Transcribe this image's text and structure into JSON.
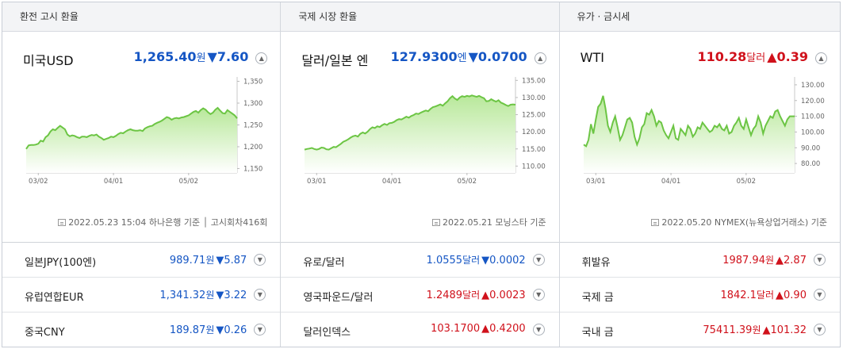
{
  "panels": [
    {
      "header": "환전 고시 환율",
      "main": {
        "name": "미국USD",
        "value": "1,265.40",
        "unit": "원",
        "arrow": "▼",
        "change": "7.60",
        "dir": "down",
        "source": "2022.05.23 15:04 하나은행 기준 │ 고시회차416회"
      },
      "chart_data": {
        "type": "area",
        "title": "",
        "xlabel": "",
        "ylabel": "",
        "ylim": [
          1140,
          1360
        ],
        "yticks": [
          "1,350",
          "1,300",
          "1,250",
          "1,200",
          "1,150"
        ],
        "ytick_values": [
          1350,
          1300,
          1250,
          1200,
          1150
        ],
        "xticks": [
          "03/02",
          "04/01",
          "05/02"
        ],
        "xtick_positions": [
          5,
          36,
          67
        ],
        "n_points": 88,
        "values": [
          1195,
          1203,
          1204,
          1204,
          1205,
          1207,
          1214,
          1212,
          1222,
          1226,
          1235,
          1240,
          1238,
          1243,
          1248,
          1244,
          1240,
          1228,
          1224,
          1226,
          1225,
          1222,
          1220,
          1223,
          1223,
          1222,
          1225,
          1227,
          1226,
          1228,
          1223,
          1220,
          1216,
          1218,
          1220,
          1223,
          1222,
          1225,
          1229,
          1232,
          1231,
          1235,
          1238,
          1240,
          1238,
          1237,
          1237,
          1238,
          1236,
          1242,
          1245,
          1247,
          1248,
          1252,
          1255,
          1257,
          1260,
          1264,
          1268,
          1266,
          1262,
          1265,
          1266,
          1265,
          1267,
          1268,
          1270,
          1272,
          1276,
          1280,
          1282,
          1278,
          1284,
          1288,
          1285,
          1279,
          1275,
          1278,
          1285,
          1289,
          1283,
          1277,
          1276,
          1284,
          1280,
          1276,
          1272,
          1265
        ]
      },
      "rows": [
        {
          "name": "일본JPY(100엔)",
          "value": "989.71",
          "unit": "원",
          "arrow": "▼",
          "change": "5.87",
          "dir": "down"
        },
        {
          "name": "유럽연합EUR",
          "value": "1,341.32",
          "unit": "원",
          "arrow": "▼",
          "change": "3.22",
          "dir": "down"
        },
        {
          "name": "중국CNY",
          "value": "189.87",
          "unit": "원",
          "arrow": "▼",
          "change": "0.26",
          "dir": "down"
        }
      ]
    },
    {
      "header": "국제 시장 환율",
      "main": {
        "name": "달러/일본 엔",
        "value": "127.9300",
        "unit": "엔",
        "arrow": "▼",
        "change": "0.0700",
        "dir": "down",
        "source": "2022.05.21 모닝스타 기준"
      },
      "chart_data": {
        "type": "area",
        "title": "",
        "xlabel": "",
        "ylabel": "",
        "ylim": [
          108,
          136
        ],
        "yticks": [
          "135.00",
          "130.00",
          "125.00",
          "120.00",
          "115.00",
          "110.00"
        ],
        "ytick_values": [
          135,
          130,
          125,
          120,
          115,
          110
        ],
        "xticks": [
          "03/01",
          "04/01",
          "05/02"
        ],
        "xtick_positions": [
          5,
          36,
          67
        ],
        "n_points": 88,
        "values": [
          114.8,
          115.0,
          115.1,
          115.3,
          115.0,
          114.8,
          115.0,
          115.4,
          115.3,
          114.9,
          114.8,
          115.2,
          115.6,
          115.5,
          116.0,
          116.5,
          117.1,
          117.4,
          117.8,
          118.3,
          118.7,
          118.9,
          118.6,
          119.4,
          119.8,
          119.5,
          120.0,
          120.8,
          121.3,
          121.1,
          121.6,
          121.4,
          121.9,
          122.3,
          122.0,
          122.5,
          122.6,
          122.9,
          123.4,
          123.7,
          123.6,
          124.0,
          124.4,
          124.1,
          124.6,
          124.9,
          125.3,
          125.2,
          125.6,
          125.9,
          126.2,
          126.0,
          126.7,
          127.2,
          127.4,
          127.7,
          128.0,
          127.6,
          128.3,
          128.9,
          129.8,
          130.4,
          129.7,
          129.3,
          130.0,
          130.4,
          130.2,
          130.5,
          130.3,
          130.6,
          130.4,
          130.2,
          130.5,
          130.1,
          129.8,
          128.9,
          129.0,
          129.5,
          129.1,
          128.8,
          129.2,
          128.5,
          128.2,
          127.8,
          127.5,
          127.9,
          128.0,
          127.9
        ]
      },
      "rows": [
        {
          "name": "유로/달러",
          "value": "1.0555",
          "unit": "달러",
          "arrow": "▼",
          "change": "0.0002",
          "dir": "down"
        },
        {
          "name": "영국파운드/달러",
          "value": "1.2489",
          "unit": "달러",
          "arrow": "▲",
          "change": "0.0023",
          "dir": "up"
        },
        {
          "name": "달러인덱스",
          "value": "103.1700",
          "unit": "",
          "arrow": "▲",
          "change": "0.4200",
          "dir": "up"
        }
      ]
    },
    {
      "header": "유가 · 금시세",
      "main": {
        "name": "WTI",
        "value": "110.28",
        "unit": "달러",
        "arrow": "▲",
        "change": "0.39",
        "dir": "up",
        "source": "2022.05.20 NYMEX(뉴욕상업거래소) 기준"
      },
      "chart_data": {
        "type": "area",
        "title": "",
        "xlabel": "",
        "ylabel": "",
        "ylim": [
          74,
          135
        ],
        "yticks": [
          "130.00",
          "120.00",
          "110.00",
          "100.00",
          "90.00",
          "80.00"
        ],
        "ytick_values": [
          130,
          120,
          110,
          100,
          90,
          80
        ],
        "xticks": [
          "03/01",
          "04/01",
          "05/02"
        ],
        "xtick_positions": [
          5,
          36,
          67
        ],
        "n_points": 88,
        "values": [
          92,
          91,
          95,
          105,
          99,
          108,
          116,
          118,
          123,
          115,
          104,
          100,
          106,
          110,
          103,
          95,
          98,
          103,
          108,
          109,
          106,
          97,
          92,
          96,
          103,
          105,
          112,
          111,
          114,
          110,
          104,
          107,
          106,
          101,
          98,
          96,
          100,
          104,
          96,
          95,
          102,
          100,
          98,
          104,
          102,
          97,
          99,
          103,
          102,
          106,
          104,
          102,
          100,
          101,
          104,
          103,
          105,
          102,
          101,
          104,
          99,
          100,
          104,
          106,
          109,
          104,
          102,
          108,
          103,
          98,
          102,
          104,
          110,
          106,
          99,
          104,
          107,
          110,
          109,
          113,
          114,
          110,
          107,
          104,
          108,
          110,
          110,
          110
        ]
      },
      "rows": [
        {
          "name": "휘발유",
          "value": "1987.94",
          "unit": "원",
          "arrow": "▲",
          "change": "2.87",
          "dir": "up"
        },
        {
          "name": "국제 금",
          "value": "1842.1",
          "unit": "달러",
          "arrow": "▲",
          "change": "0.90",
          "dir": "up"
        },
        {
          "name": "국내 금",
          "value": "75411.39",
          "unit": "원",
          "arrow": "▲",
          "change": "101.32",
          "dir": "up"
        }
      ]
    }
  ],
  "icons": {
    "expand": "chevron-up-icon",
    "collapse": "chevron-down-icon",
    "source": "document-icon"
  },
  "colors": {
    "up": "#d0111b",
    "down": "#1556c4",
    "line": "#6cc544",
    "fill_top": "#b8e89a",
    "fill_bottom": "#ffffff"
  }
}
